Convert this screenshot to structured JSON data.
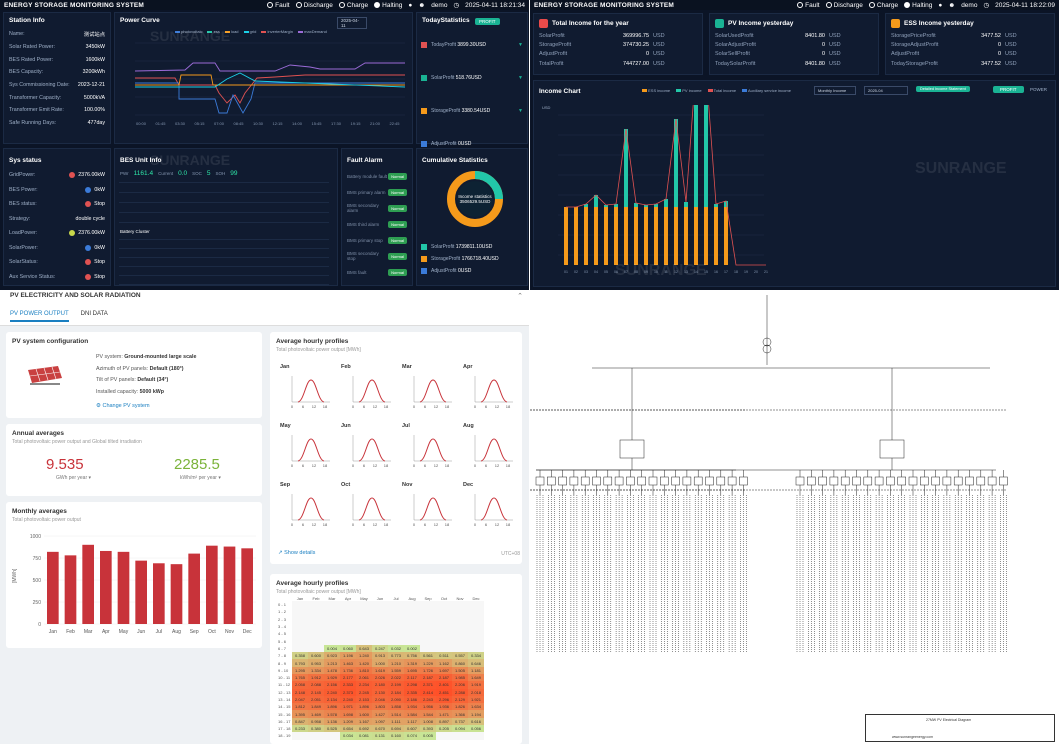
{
  "q1": {
    "system_title": "ENERGY STORAGE MONITORING SYSTEM",
    "status": [
      "Fault",
      "Discharge",
      "Charge",
      "Halting"
    ],
    "user": "demo",
    "time": "2025-04-11 18:21:34",
    "station": {
      "title": "Station Info",
      "rows": [
        [
          "Name:",
          "测试站点"
        ],
        [
          "Solar Rated Power:",
          "3450kW"
        ],
        [
          "BES Rated Power:",
          "1600kW"
        ],
        [
          "BES Capacity:",
          "3200kWh"
        ],
        [
          "Sys Commissioning Date:",
          "2023-12-21"
        ],
        [
          "Transformer Capacity:",
          "5000kVA"
        ],
        [
          "Transformer Emit Rate:",
          "100.00%"
        ],
        [
          "Safe Running Days:",
          "477day"
        ]
      ]
    },
    "power_curve": {
      "title": "Power Curve",
      "date": "2025-04-11",
      "legend": [
        "photovoltaic",
        "ess",
        "load",
        "grid",
        "inverterMargin",
        "maxDemand"
      ],
      "xticks": [
        "00:00",
        "01:45",
        "03:30",
        "05:15",
        "07:00",
        "08:45",
        "10:30",
        "12:15",
        "14:00",
        "15:45",
        "17:30",
        "19:15",
        "21:00",
        "22:45"
      ]
    },
    "today": {
      "title": "TodayStatistics",
      "btn": "PROFIT",
      "rows": [
        [
          "TodayProfit",
          "3899.30USD"
        ],
        [
          "SolarProfit",
          "518.76USD"
        ],
        [
          "StorageProfit",
          "3380.54USD"
        ],
        [
          "AdjustProfit",
          "0USD"
        ]
      ]
    },
    "sys_status": {
      "title": "Sys status",
      "rows": [
        [
          "GridPower:",
          "2376.00kW",
          "#e05252"
        ],
        [
          "BES Power:",
          "0kW",
          "#3b7bd8"
        ],
        [
          "BES status:",
          "Stop",
          "#e05252"
        ],
        [
          "Strategy:",
          "double cycle",
          ""
        ],
        [
          "LoadPower:",
          "2376.00kW",
          "#c8d84a"
        ],
        [
          "SolarPower:",
          "0kW",
          "#3b7bd8"
        ],
        [
          "SolarStatus:",
          "Stop",
          "#e05252"
        ],
        [
          "Aux Service Status:",
          "Stop",
          "#e05252"
        ]
      ]
    },
    "bes_unit": {
      "title": "BES Unit Info",
      "pwr_label": "PWr",
      "pwr": "1161.4",
      "cur_label": "Current",
      "cur": "0.0",
      "soc_label": "SOC",
      "soc": "5",
      "soh_label": "SOH",
      "soh": "99",
      "cluster_label": "Battery Cluster"
    },
    "fault": {
      "title": "Fault Alarm",
      "items": [
        "Battery module fault",
        "BMS primary alarm",
        "BMS secondary alarm",
        "BMS third alarm",
        "BMS primary stop",
        "BMS secondary stop",
        "BMS fault"
      ],
      "badge": "Normal"
    },
    "cumulative": {
      "title": "Cumulative Statistics",
      "center_label": "Income statistics",
      "center_value": "3506529.5USD",
      "rows": [
        [
          "SolarProfit",
          "1739811.10USD"
        ],
        [
          "StorageProfit",
          "1766718.40USD"
        ],
        [
          "AdjustProfit",
          "0USD"
        ]
      ]
    },
    "watermark": "SUNRANGE"
  },
  "q2": {
    "system_title": "ENERGY STORAGE MONITORING SYSTEM",
    "status": [
      "Fault",
      "Discharge",
      "Charge",
      "Halting"
    ],
    "user": "demo",
    "time": "2025-04-11 18:22:09",
    "total_income": {
      "title": "Total Income for the year",
      "rows": [
        [
          "SolarProfit",
          "369996.75",
          "USD"
        ],
        [
          "StorageProfit",
          "374730.25",
          "USD"
        ],
        [
          "AdjustProfit",
          "0",
          "USD"
        ],
        [
          "TotalProfit",
          "744727.00",
          "USD"
        ]
      ]
    },
    "pv_income": {
      "title": "PV Income yesterday",
      "rows": [
        [
          "SolarUsedProfit",
          "8401.80",
          "USD"
        ],
        [
          "SolarAdjustProfit",
          "0",
          "USD"
        ],
        [
          "SolarSellProfit",
          "0",
          "USD"
        ],
        [
          "TodaySolarProfit",
          "8401.80",
          "USD"
        ]
      ]
    },
    "ess_income": {
      "title": "ESS Income yesterday",
      "rows": [
        [
          "StoragePriceProfit",
          "3477.52",
          "USD"
        ],
        [
          "StorageAdjustProfit",
          "0",
          "USD"
        ],
        [
          "AdjustProfit",
          "0",
          "USD"
        ],
        [
          "TodayStorageProfit",
          "3477.52",
          "USD"
        ]
      ]
    },
    "income_chart": {
      "title": "Income Chart",
      "legend": [
        "ESS income",
        "PV income",
        "Total income",
        "Auxiliary service income"
      ],
      "select": "Monthly Income",
      "month": "2025-04",
      "detail_btn": "Detailed Income Statement",
      "btn_profit": "PROFIT",
      "btn_power": "POWER",
      "yunit": "USD"
    },
    "watermark": "SUNRANGE"
  },
  "q3": {
    "section_title": "PV ELECTRICITY AND SOLAR RADIATION",
    "tabs": [
      "PV POWER OUTPUT",
      "DNI DATA"
    ],
    "config": {
      "title": "PV system configuration",
      "rows": [
        [
          "PV system:",
          "Ground-mounted large scale"
        ],
        [
          "Azimuth of PV panels:",
          "Default (180°)"
        ],
        [
          "Tilt of PV panels:",
          "Default (34°)"
        ],
        [
          "Installed capacity:",
          "5000 kWp"
        ]
      ],
      "change": "Change PV system"
    },
    "annual": {
      "title": "Annual averages",
      "subtitle": "Total photovoltaic power output and Global tilted irradiation",
      "v1": "9.535",
      "u1": "GWh per year",
      "v2": "2285.5",
      "u2": "kWh/m² per year"
    },
    "monthly": {
      "title": "Monthly averages",
      "subtitle": "Total photovoltaic power output",
      "ylabel": "[MWh]"
    },
    "hourly": {
      "title": "Average hourly profiles",
      "subtitle": "Total photovoltaic power output [MWh]",
      "months": [
        "Jan",
        "Feb",
        "Mar",
        "Apr",
        "May",
        "Jun",
        "Jul",
        "Aug",
        "Sep",
        "Oct",
        "Nov",
        "Dec"
      ],
      "ticks": [
        "0",
        "6",
        "12",
        "18"
      ],
      "show": "Show details",
      "utc": "UTC+08"
    },
    "hourly2": {
      "title": "Average hourly profiles",
      "subtitle": "Total photovoltaic power output [MWh]",
      "months": [
        "Jan",
        "Feb",
        "Mar",
        "Apr",
        "May",
        "Jun",
        "Jul",
        "Aug",
        "Sep",
        "Oct",
        "Nov",
        "Dec"
      ],
      "rows": [
        [
          "0 - 1",
          []
        ],
        [
          "1 - 2",
          []
        ],
        [
          "2 - 3",
          []
        ],
        [
          "3 - 4",
          []
        ],
        [
          "4 - 5",
          []
        ],
        [
          "5 - 6",
          []
        ],
        [
          "6 - 7",
          [
            "",
            "",
            "0.004",
            "0.060",
            "0.643",
            "0.247",
            "0.032",
            "0.002",
            "",
            "",
            "",
            ""
          ]
        ],
        [
          "7 - 8",
          [
            "0.358",
            "0.600",
            "0.923",
            "1.196",
            "1.240",
            "0.913",
            "0.773",
            "0.756",
            "0.561",
            "0.511",
            "0.557",
            "0.334"
          ]
        ],
        [
          "8 - 9",
          [
            "0.793",
            "0.953",
            "1.213",
            "1.463",
            "1.420",
            "1.000",
            "1.210",
            "1.319",
            "1.229",
            "1.162",
            "0.860",
            "0.646"
          ]
        ],
        [
          "9 - 10",
          [
            "1.295",
            "1.334",
            "1.478",
            "1.736",
            "1.810",
            "1.619",
            "1.559",
            "1.695",
            "1.726",
            "1.697",
            "1.505",
            "1.181"
          ]
        ],
        [
          "10 - 11",
          [
            "1.765",
            "1.912",
            "1.929",
            "2.177",
            "2.061",
            "2.026",
            "2.022",
            "2.117",
            "2.187",
            "2.187",
            "1.985",
            "1.649"
          ]
        ],
        [
          "11 - 12",
          [
            "2.058",
            "2.088",
            "2.156",
            "2.333",
            "2.234",
            "2.180",
            "2.199",
            "2.298",
            "2.371",
            "2.401",
            "2.206",
            "1.919"
          ]
        ],
        [
          "12 - 13",
          [
            "2.148",
            "2.145",
            "2.240",
            "2.373",
            "2.245",
            "2.130",
            "2.184",
            "2.335",
            "2.414",
            "2.451",
            "2.288",
            "2.018"
          ]
        ],
        [
          "13 - 14",
          [
            "2.047",
            "2.051",
            "2.134",
            "2.240",
            "2.153",
            "2.046",
            "2.090",
            "2.186",
            "2.243",
            "2.296",
            "2.129",
            "1.921"
          ]
        ],
        [
          "14 - 15",
          [
            "1.812",
            "1.849",
            "1.896",
            "1.971",
            "1.896",
            "1.803",
            "1.858",
            "1.934",
            "1.956",
            "1.936",
            "1.826",
            "1.634"
          ]
        ],
        [
          "15 - 16",
          [
            "1.395",
            "1.469",
            "1.578",
            "1.698",
            "1.600",
            "1.427",
            "1.514",
            "1.584",
            "1.544",
            "1.471",
            "1.366",
            "1.194"
          ]
        ],
        [
          "16 - 17",
          [
            "0.847",
            "0.958",
            "1.136",
            "1.209",
            "1.167",
            "1.097",
            "1.111",
            "1.117",
            "1.008",
            "0.897",
            "0.737",
            "0.616"
          ]
        ],
        [
          "17 - 18",
          [
            "0.233",
            "0.380",
            "0.525",
            "0.654",
            "0.692",
            "0.670",
            "0.694",
            "0.607",
            "0.393",
            "0.205",
            "0.094",
            "0.056"
          ]
        ],
        [
          "18 - 19",
          [
            "",
            "",
            "",
            "0.034",
            "0.081",
            "0.131",
            "0.160",
            "0.074",
            "0.005",
            "",
            "",
            ""
          ]
        ]
      ]
    },
    "monthly_chart": {
      "categories": [
        "Jan",
        "Feb",
        "Mar",
        "Apr",
        "May",
        "Jun",
        "Jul",
        "Aug",
        "Sep",
        "Oct",
        "Nov",
        "Dec"
      ],
      "values": [
        820,
        780,
        900,
        830,
        820,
        720,
        690,
        680,
        800,
        890,
        880,
        860
      ],
      "ylim": [
        0,
        1000
      ],
      "yticks": [
        "0",
        "250",
        "500",
        "750",
        "1000"
      ]
    }
  },
  "q4": {
    "title_block": [
      "27MW PV Electrical Diagram",
      "www.sunrangeenergy.com"
    ]
  }
}
